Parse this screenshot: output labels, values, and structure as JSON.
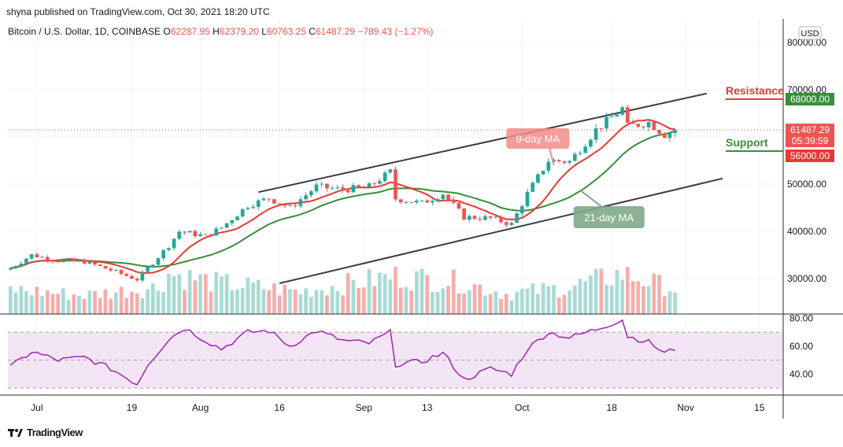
{
  "header": {
    "text": "shyna published on TradingView.com, Oct 30, 2021 18:20 UTC"
  },
  "legend": {
    "symbol": "Bitcoin / U.S. Dollar, 1D, COINBASE",
    "o_label": "O",
    "o_value": "62287.95",
    "h_label": "H",
    "h_value": "62379.20",
    "l_label": "L",
    "l_value": "60763.25",
    "c_label": "C",
    "c_value": "61487.29",
    "change": "−789.43 (−1.27%)"
  },
  "currency": "USD",
  "footer": {
    "brand": "TradingView",
    "logo_icon": "tradingview-logo-icon"
  },
  "colors": {
    "up": "#26a69a",
    "down": "#ef5350",
    "vol_up": "#a9dbd6",
    "vol_down": "#f5adab",
    "ma9": "#e53935",
    "ma21": "#3a8d3a",
    "rsi_line": "#9c27b0",
    "rsi_band": "#f3e5f5",
    "resistance": "#388e3c",
    "support": "#e53935",
    "price": "#ef5350"
  },
  "chart_data": {
    "type": "candlestick",
    "price_axis": {
      "min": 22500,
      "max": 85000,
      "ticks": [
        80000,
        70000,
        60000,
        50000,
        40000,
        30000
      ],
      "tick_labels": [
        "80000.00",
        "70000.00",
        "60000.00",
        "50000.00",
        "40000.00",
        "30000.00"
      ]
    },
    "rsi_axis": {
      "min": 25,
      "max": 83,
      "ticks": [
        80,
        60,
        40
      ],
      "tick_labels": [
        "80.00",
        "60.00",
        "40.00"
      ],
      "band": [
        30,
        70
      ]
    },
    "x_axis": {
      "start_date": "2021-06-26",
      "end_date": "2021-11-19",
      "ticks": [
        {
          "date": "2021-07-01",
          "label": "Jul"
        },
        {
          "date": "2021-07-19",
          "label": "19"
        },
        {
          "date": "2021-08-01",
          "label": "Aug"
        },
        {
          "date": "2021-08-16",
          "label": "16"
        },
        {
          "date": "2021-09-01",
          "label": "Sep"
        },
        {
          "date": "2021-09-13",
          "label": "13"
        },
        {
          "date": "2021-10-01",
          "label": "Oct"
        },
        {
          "date": "2021-10-18",
          "label": "18"
        },
        {
          "date": "2021-11-01",
          "label": "Nov"
        },
        {
          "date": "2021-11-15",
          "label": "15"
        }
      ]
    },
    "close_anchors": [
      [
        "2021-06-26",
        32200
      ],
      [
        "2021-06-30",
        35000
      ],
      [
        "2021-07-05",
        33800
      ],
      [
        "2021-07-10",
        33600
      ],
      [
        "2021-07-15",
        31800
      ],
      [
        "2021-07-20",
        29800
      ],
      [
        "2021-07-22",
        32200
      ],
      [
        "2021-07-26",
        37000
      ],
      [
        "2021-07-28",
        40000
      ],
      [
        "2021-08-02",
        39000
      ],
      [
        "2021-08-05",
        40800
      ],
      [
        "2021-08-10",
        45500
      ],
      [
        "2021-08-14",
        47000
      ],
      [
        "2021-08-18",
        45000
      ],
      [
        "2021-08-23",
        49500
      ],
      [
        "2021-08-28",
        48800
      ],
      [
        "2021-09-02",
        49500
      ],
      [
        "2021-09-06",
        52600
      ],
      [
        "2021-09-07",
        46900
      ],
      [
        "2021-09-12",
        46000
      ],
      [
        "2021-09-16",
        48000
      ],
      [
        "2021-09-20",
        43000
      ],
      [
        "2021-09-25",
        42800
      ],
      [
        "2021-09-29",
        41500
      ],
      [
        "2021-10-02",
        48000
      ],
      [
        "2021-10-06",
        55000
      ],
      [
        "2021-10-10",
        54800
      ],
      [
        "2021-10-15",
        61500
      ],
      [
        "2021-10-20",
        66000
      ],
      [
        "2021-10-21",
        62200
      ],
      [
        "2021-10-25",
        63100
      ],
      [
        "2021-10-28",
        60500
      ],
      [
        "2021-10-30",
        61487.29
      ]
    ],
    "volume_anchors": [
      [
        "2021-06-26",
        0.55
      ],
      [
        "2021-07-10",
        0.42
      ],
      [
        "2021-07-24",
        0.6
      ],
      [
        "2021-07-26",
        0.9
      ],
      [
        "2021-08-04",
        0.7
      ],
      [
        "2021-08-20",
        0.5
      ],
      [
        "2021-09-07",
        0.85
      ],
      [
        "2021-09-20",
        0.7
      ],
      [
        "2021-09-28",
        0.45
      ],
      [
        "2021-10-10",
        0.6
      ],
      [
        "2021-10-20",
        0.9
      ],
      [
        "2021-10-30",
        0.55
      ]
    ],
    "rsi_anchors": [
      [
        "2021-06-26",
        45
      ],
      [
        "2021-06-30",
        56
      ],
      [
        "2021-07-05",
        50
      ],
      [
        "2021-07-10",
        52
      ],
      [
        "2021-07-15",
        44
      ],
      [
        "2021-07-20",
        33
      ],
      [
        "2021-07-22",
        47
      ],
      [
        "2021-07-26",
        65
      ],
      [
        "2021-07-29",
        73
      ],
      [
        "2021-08-02",
        64
      ],
      [
        "2021-08-05",
        58
      ],
      [
        "2021-08-10",
        70
      ],
      [
        "2021-08-14",
        71
      ],
      [
        "2021-08-18",
        60
      ],
      [
        "2021-08-23",
        71
      ],
      [
        "2021-08-28",
        64
      ],
      [
        "2021-09-02",
        62
      ],
      [
        "2021-09-06",
        70
      ],
      [
        "2021-09-07",
        47
      ],
      [
        "2021-09-12",
        49
      ],
      [
        "2021-09-16",
        55
      ],
      [
        "2021-09-20",
        36
      ],
      [
        "2021-09-25",
        44
      ],
      [
        "2021-09-29",
        40
      ],
      [
        "2021-10-02",
        58
      ],
      [
        "2021-10-06",
        70
      ],
      [
        "2021-10-10",
        66
      ],
      [
        "2021-10-15",
        72
      ],
      [
        "2021-10-20",
        79
      ],
      [
        "2021-10-21",
        67
      ],
      [
        "2021-10-25",
        63
      ],
      [
        "2021-10-28",
        55
      ],
      [
        "2021-10-30",
        58
      ]
    ],
    "annotations": {
      "resistance": {
        "label": "Resistance",
        "price": 68000,
        "price_label": "68000.00"
      },
      "support": {
        "label": "Support",
        "price": 56000,
        "price_label": "56000.00"
      },
      "last_price": {
        "price": 61487.29,
        "price_label": "61487.29",
        "countdown": "05:39:59"
      },
      "ma9_label": "9-day MA",
      "ma21_label": "21-day MA",
      "channel_upper": [
        [
          "2021-08-12",
          48300
        ],
        [
          "2021-11-05",
          69200
        ]
      ],
      "channel_lower": [
        [
          "2021-08-16",
          29000
        ],
        [
          "2021-11-08",
          51200
        ]
      ]
    }
  }
}
